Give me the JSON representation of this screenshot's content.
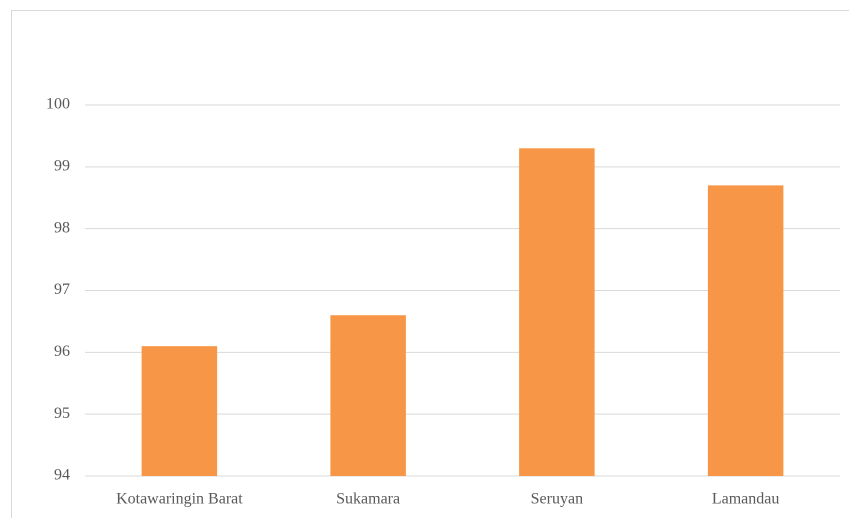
{
  "chart_data": {
    "type": "bar",
    "categories": [
      "Kotawaringin Barat",
      "Sukamara",
      "Seruyan",
      "Lamandau"
    ],
    "values": [
      96.1,
      96.6,
      99.3,
      98.7
    ],
    "color": "#f79646",
    "ylim": [
      94,
      100
    ],
    "yticks": [
      94,
      95,
      96,
      97,
      98,
      99,
      100
    ],
    "grid": true
  }
}
